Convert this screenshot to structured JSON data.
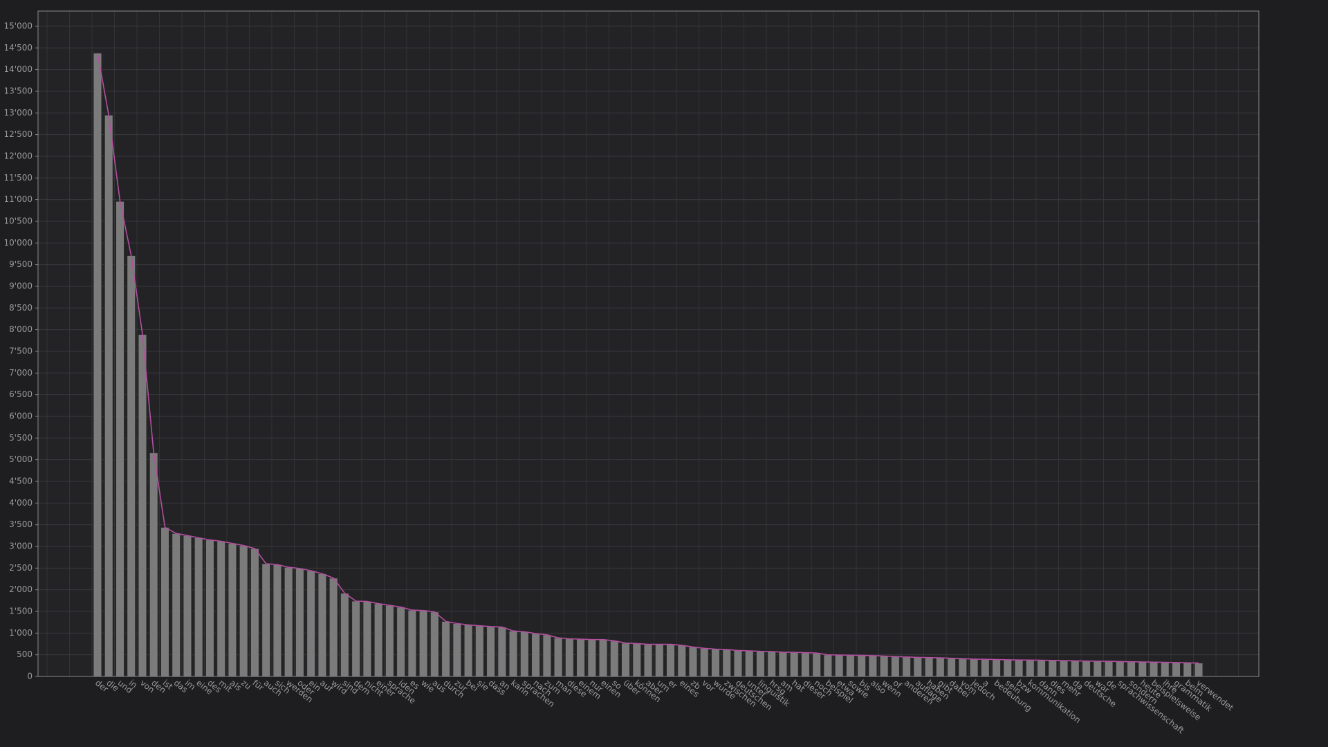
{
  "chart_data": {
    "type": "bar",
    "categories": [
      "der",
      "die",
      "und",
      "in",
      "von",
      "den",
      "ist",
      "das",
      "im",
      "eine",
      "des",
      "mit",
      "als",
      "zu",
      "für",
      "auch",
      "sich",
      "werden",
      "oder",
      "ein",
      "auf",
      "wird",
      "sind",
      "dem",
      "nicht",
      "einer",
      "sprache",
      "iden",
      "es",
      "wie",
      "aus",
      "durch",
      "zur",
      "bei",
      "sie",
      "dass",
      "an",
      "kann",
      "sprachen",
      "nach",
      "zum",
      "man",
      "diese",
      "einem",
      "nur",
      "einen",
      "so",
      "über",
      "können",
      "aber",
      "um",
      "er",
      "eines",
      "zb",
      "vor",
      "wurde",
      "zwischen",
      "deutschen",
      "unter",
      "linguistik",
      "hrsg",
      "am",
      "hat",
      "dieser",
      "noch",
      "beispiel",
      "etwa",
      "sowie",
      "bis",
      "also",
      "wenn",
      "of",
      "anderen",
      "auflage",
      "haben",
      "gibt",
      "dabei",
      "vom",
      "jedoch",
      "a",
      "bedeutung",
      "sein",
      "bzw",
      "kommunikation",
      "dann",
      "dies",
      "mehr",
      "da",
      "deutsche",
      "war",
      "de",
      "sprachwissenschaft",
      "sondern",
      "heute",
      "beispielsweise",
      "ihre",
      "grammatik",
      "beim",
      "verwendet"
    ],
    "values": [
      14380,
      12950,
      10960,
      9710,
      7890,
      5160,
      3440,
      3300,
      3250,
      3200,
      3150,
      3120,
      3070,
      3020,
      2950,
      2600,
      2580,
      2520,
      2490,
      2440,
      2370,
      2270,
      1920,
      1740,
      1730,
      1680,
      1640,
      1600,
      1530,
      1520,
      1490,
      1270,
      1220,
      1190,
      1170,
      1150,
      1140,
      1050,
      1030,
      990,
      960,
      890,
      870,
      860,
      850,
      850,
      820,
      770,
      760,
      740,
      740,
      740,
      720,
      680,
      650,
      630,
      620,
      600,
      590,
      580,
      575,
      560,
      555,
      550,
      540,
      500,
      495,
      490,
      485,
      480,
      470,
      460,
      450,
      440,
      435,
      430,
      420,
      410,
      400,
      395,
      390,
      385,
      380,
      378,
      375,
      370,
      365,
      360,
      355,
      352,
      350,
      345,
      340,
      335,
      330,
      325,
      320,
      315,
      310
    ],
    "color": "#7b7b7b",
    "line_color": "#b44fa0",
    "ylim": [
      0,
      15350
    ],
    "yticks": [
      0,
      500,
      {
        "value": 1000,
        "label": "1'000"
      },
      {
        "value": 1500,
        "label": "1'500"
      },
      {
        "value": 2000,
        "label": "2'000"
      },
      {
        "value": 2500,
        "label": "2'500"
      },
      {
        "value": 3000,
        "label": "3'000"
      },
      {
        "value": 3500,
        "label": "3'500"
      },
      {
        "value": 4000,
        "label": "4'000"
      },
      {
        "value": 4500,
        "label": "4'500"
      },
      {
        "value": 5000,
        "label": "5'000"
      },
      {
        "value": 5500,
        "label": "5'500"
      },
      {
        "value": 6000,
        "label": "6'000"
      },
      {
        "value": 6500,
        "label": "6'500"
      },
      {
        "value": 7000,
        "label": "7'000"
      },
      {
        "value": 7500,
        "label": "7'500"
      },
      {
        "value": 8000,
        "label": "8'000"
      },
      {
        "value": 8500,
        "label": "8'500"
      },
      {
        "value": 9000,
        "label": "9'000"
      },
      {
        "value": 9500,
        "label": "9'500"
      },
      {
        "value": 10000,
        "label": "10'000"
      },
      {
        "value": 10500,
        "label": "10'500"
      },
      {
        "value": 11000,
        "label": "11'000"
      },
      {
        "value": 11500,
        "label": "11'500"
      },
      {
        "value": 12000,
        "label": "12'000"
      },
      {
        "value": 12500,
        "label": "12'500"
      },
      {
        "value": 13000,
        "label": "13'000"
      },
      {
        "value": 13500,
        "label": "13'500"
      },
      {
        "value": 14000,
        "label": "14'000"
      },
      {
        "value": 14500,
        "label": "14'500"
      },
      {
        "value": 15000,
        "label": "15'000"
      }
    ],
    "grid": true
  }
}
